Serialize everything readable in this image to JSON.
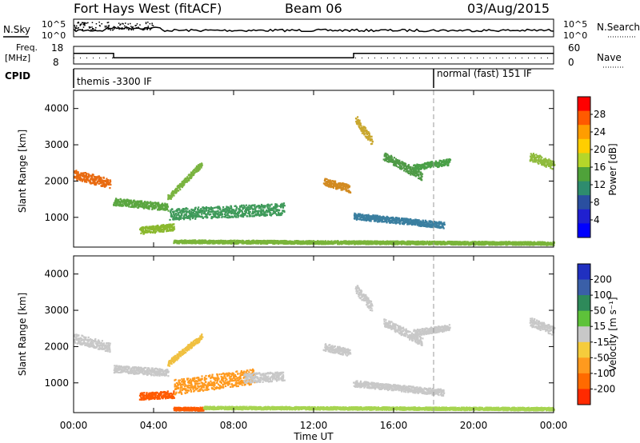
{
  "header": {
    "station": "Fort Hays West (fitACF)",
    "beam": "Beam 06",
    "date": "03/Aug/2015"
  },
  "top_panels": {
    "nsky_label": "N.Sky",
    "nsearch_label": "N.Search",
    "nave_label": "Nave",
    "freq_label_line1": "Freq.",
    "freq_label_line2": "[MHz]",
    "cpid_label": "CPID",
    "noise_ticks": [
      "10^5",
      "10^0"
    ],
    "freq_ticks": [
      "18",
      "8"
    ],
    "nave_ticks": [
      "60",
      "0"
    ],
    "cpid_segments": [
      {
        "start": 0.0,
        "label": "themis -3300 IF"
      },
      {
        "start": 18.0,
        "label": "normal (fast) 151 IF"
      }
    ],
    "freq_segments": [
      {
        "start": 0.0,
        "end": 2.0,
        "mhz": 14.0
      },
      {
        "start": 2.0,
        "end": 14.0,
        "mhz": 11.5
      },
      {
        "start": 14.0,
        "end": 24.0,
        "mhz": 14.0
      }
    ]
  },
  "colorbars": {
    "power": {
      "label": "Power [dB]",
      "ticks": [
        "28",
        "24",
        "20",
        "16",
        "12",
        "8",
        "4"
      ],
      "colors": [
        "#ff0000",
        "#ff5a00",
        "#ff9d00",
        "#ffce00",
        "#b5d62a",
        "#4fa23a",
        "#2e8c6e",
        "#2a4fa0",
        "#2020d0",
        "#0000ff"
      ]
    },
    "velocity": {
      "label": "Velocity [m s⁻¹]",
      "ticks": [
        "200",
        "100",
        "50",
        "15",
        "-15",
        "-50",
        "-100",
        "-200"
      ],
      "colors": [
        "#2030c0",
        "#3a5fa8",
        "#2e8a5a",
        "#5ec23a",
        "#c8c8c8",
        "#f5cc3c",
        "#ff9a1e",
        "#ff6a00",
        "#ff2a00"
      ]
    }
  },
  "chart_data": {
    "type": "heatmap",
    "x_range_hours": [
      0,
      24
    ],
    "x_tick_labels": [
      "00:00",
      "04:00",
      "08:00",
      "12:00",
      "16:00",
      "20:00",
      "00:00"
    ],
    "xlabel": "Time UT",
    "ylabel": "Slant Range [km]",
    "ylim": [
      180,
      4500
    ],
    "y_tick_labels": [
      "1000",
      "2000",
      "3000",
      "4000"
    ],
    "power_echoes": [
      {
        "t0": 0.0,
        "t1": 1.8,
        "r0": 2200,
        "r1": 1950,
        "thick": 260,
        "color": "#e86a10"
      },
      {
        "t0": 2.0,
        "t1": 4.7,
        "r0": 1450,
        "r1": 1300,
        "thick": 200,
        "color": "#5aa640"
      },
      {
        "t0": 3.3,
        "t1": 5.0,
        "r0": 650,
        "r1": 760,
        "thick": 200,
        "color": "#8ab82e"
      },
      {
        "t0": 4.8,
        "t1": 10.5,
        "r0": 1100,
        "r1": 1250,
        "thick": 320,
        "color": "#3f9a5a"
      },
      {
        "t0": 4.7,
        "t1": 6.4,
        "r0": 1550,
        "r1": 2500,
        "thick": 150,
        "color": "#7ab440"
      },
      {
        "t0": 12.5,
        "t1": 13.8,
        "r0": 2000,
        "r1": 1800,
        "thick": 200,
        "color": "#d28a20"
      },
      {
        "t0": 14.1,
        "t1": 14.9,
        "r0": 3700,
        "r1": 3100,
        "thick": 250,
        "color": "#c9a72e"
      },
      {
        "t0": 15.5,
        "t1": 17.4,
        "r0": 2700,
        "r1": 2150,
        "thick": 220,
        "color": "#4f9a46"
      },
      {
        "t0": 14.0,
        "t1": 18.5,
        "r0": 1050,
        "r1": 800,
        "thick": 170,
        "color": "#3a7fa0"
      },
      {
        "t0": 17.0,
        "t1": 18.8,
        "r0": 2400,
        "r1": 2550,
        "thick": 170,
        "color": "#4aa048"
      },
      {
        "t0": 22.8,
        "t1": 24.0,
        "r0": 2700,
        "r1": 2450,
        "thick": 240,
        "color": "#8fbb3c"
      },
      {
        "t0": 5.0,
        "t1": 24.0,
        "r0": 350,
        "r1": 300,
        "thick": 90,
        "color": "#7ab43a"
      }
    ],
    "velocity_echoes": [
      {
        "t0": 0.0,
        "t1": 1.8,
        "r0": 2250,
        "r1": 2000,
        "thick": 260,
        "color": "#c8c8c8"
      },
      {
        "t0": 2.0,
        "t1": 4.7,
        "r0": 1400,
        "r1": 1300,
        "thick": 200,
        "color": "#c8c8c8"
      },
      {
        "t0": 3.3,
        "t1": 5.0,
        "r0": 650,
        "r1": 700,
        "thick": 200,
        "color": "#ff5a00"
      },
      {
        "t0": 5.0,
        "t1": 9.0,
        "r0": 900,
        "r1": 1200,
        "thick": 420,
        "color": "#ff9a1e"
      },
      {
        "t0": 8.5,
        "t1": 10.5,
        "r0": 1150,
        "r1": 1200,
        "thick": 260,
        "color": "#c8c8c8"
      },
      {
        "t0": 4.7,
        "t1": 6.4,
        "r0": 1550,
        "r1": 2300,
        "thick": 150,
        "color": "#f0c040"
      },
      {
        "t0": 12.5,
        "t1": 13.8,
        "r0": 2000,
        "r1": 1850,
        "thick": 200,
        "color": "#c8c8c8"
      },
      {
        "t0": 14.1,
        "t1": 14.9,
        "r0": 3600,
        "r1": 3100,
        "thick": 250,
        "color": "#c8c8c8"
      },
      {
        "t0": 15.5,
        "t1": 17.4,
        "r0": 2700,
        "r1": 2150,
        "thick": 220,
        "color": "#c8c8c8"
      },
      {
        "t0": 14.0,
        "t1": 18.5,
        "r0": 1000,
        "r1": 750,
        "thick": 170,
        "color": "#c8c8c8"
      },
      {
        "t0": 17.0,
        "t1": 18.8,
        "r0": 2400,
        "r1": 2550,
        "thick": 170,
        "color": "#c8c8c8"
      },
      {
        "t0": 22.8,
        "t1": 24.0,
        "r0": 2700,
        "r1": 2450,
        "thick": 240,
        "color": "#c8c8c8"
      },
      {
        "t0": 5.0,
        "t1": 6.5,
        "r0": 300,
        "r1": 300,
        "thick": 90,
        "color": "#ff5a00"
      },
      {
        "t0": 6.5,
        "t1": 24.0,
        "r0": 330,
        "r1": 300,
        "thick": 80,
        "color": "#a6d450"
      }
    ]
  }
}
